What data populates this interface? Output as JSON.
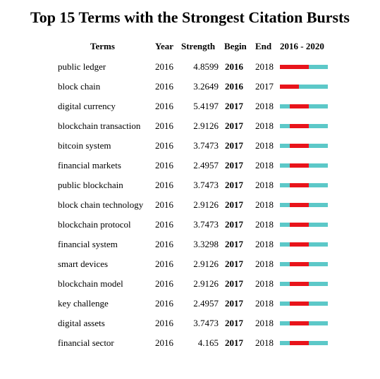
{
  "title": "Top 15 Terms with the Strongest Citation Bursts",
  "columns": {
    "terms": "Terms",
    "year": "Year",
    "strength": "Strength",
    "begin": "Begin",
    "end": "End",
    "range": "2016 - 2020"
  },
  "colors": {
    "burst": "#e8141b",
    "normal": "#5cc8c8"
  },
  "chart_data": {
    "type": "table",
    "title": "Top 15 Terms with the Strongest Citation Bursts",
    "timeline_range": [
      2016,
      2020
    ],
    "rows": [
      {
        "term": "public ledger",
        "year": "2016",
        "strength": "4.8599",
        "begin": "2016",
        "end": "2018"
      },
      {
        "term": "block chain",
        "year": "2016",
        "strength": "3.2649",
        "begin": "2016",
        "end": "2017"
      },
      {
        "term": "digital currency",
        "year": "2016",
        "strength": "5.4197",
        "begin": "2017",
        "end": "2018"
      },
      {
        "term": "blockchain transaction",
        "year": "2016",
        "strength": "2.9126",
        "begin": "2017",
        "end": "2018"
      },
      {
        "term": "bitcoin system",
        "year": "2016",
        "strength": "3.7473",
        "begin": "2017",
        "end": "2018"
      },
      {
        "term": "financial markets",
        "year": "2016",
        "strength": "2.4957",
        "begin": "2017",
        "end": "2018"
      },
      {
        "term": "public blockchain",
        "year": "2016",
        "strength": "3.7473",
        "begin": "2017",
        "end": "2018"
      },
      {
        "term": "block chain technology",
        "year": "2016",
        "strength": "2.9126",
        "begin": "2017",
        "end": "2018"
      },
      {
        "term": "blockchain protocol",
        "year": "2016",
        "strength": "3.7473",
        "begin": "2017",
        "end": "2018"
      },
      {
        "term": "financial system",
        "year": "2016",
        "strength": "3.3298",
        "begin": "2017",
        "end": "2018"
      },
      {
        "term": "smart devices",
        "year": "2016",
        "strength": "2.9126",
        "begin": "2017",
        "end": "2018"
      },
      {
        "term": "blockchain model",
        "year": "2016",
        "strength": "2.9126",
        "begin": "2017",
        "end": "2018"
      },
      {
        "term": "key challenge",
        "year": "2016",
        "strength": "2.4957",
        "begin": "2017",
        "end": "2018"
      },
      {
        "term": "digital assets",
        "year": "2016",
        "strength": "3.7473",
        "begin": "2017",
        "end": "2018"
      },
      {
        "term": "financial sector",
        "year": "2016",
        "strength": "4.165",
        "begin": "2017",
        "end": "2018"
      }
    ]
  }
}
